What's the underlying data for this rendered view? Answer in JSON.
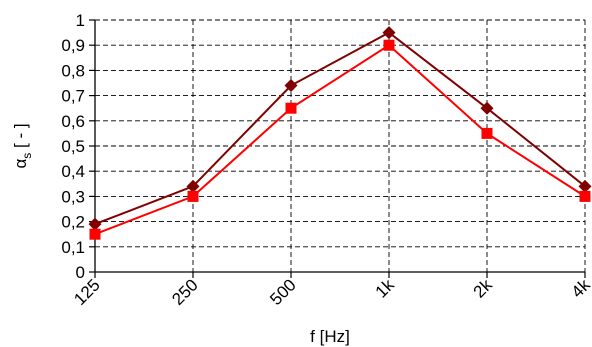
{
  "chart_data": {
    "type": "line",
    "categories": [
      "125",
      "250",
      "500",
      "1k",
      "2k",
      "4k"
    ],
    "xlabel": "f [Hz]",
    "ylabel": {
      "main": "α",
      "sub": "s",
      "unit": " [ - ]"
    },
    "ylim": [
      0,
      1
    ],
    "yticks": [
      "0",
      "0,1",
      "0,2",
      "0,3",
      "0,4",
      "0,5",
      "0,6",
      "0,7",
      "0,8",
      "0,9",
      "1"
    ],
    "grid": true,
    "legend": "none",
    "series": [
      {
        "values": [
          0.19,
          0.34,
          0.74,
          0.95,
          0.65,
          0.34
        ],
        "color": "#800000",
        "marker": "diamond"
      },
      {
        "values": [
          0.15,
          0.3,
          0.65,
          0.9,
          0.55,
          0.3
        ],
        "color": "#ff0000",
        "marker": "square"
      }
    ]
  }
}
